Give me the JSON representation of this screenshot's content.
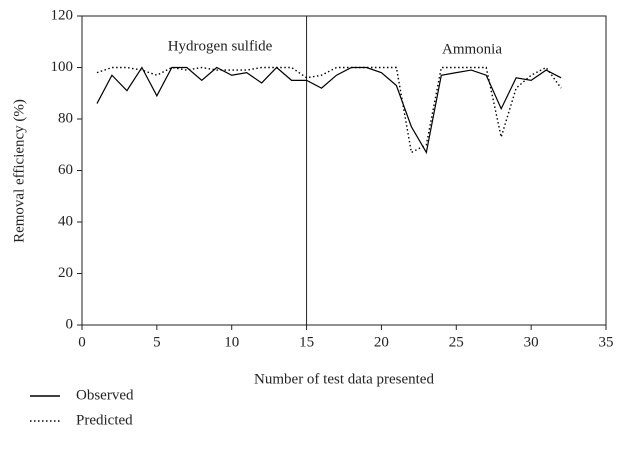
{
  "chart_data": {
    "type": "line",
    "x_label": "Number of test data presented",
    "y_label": "Removal efficiency (%)",
    "annotations": [
      "Hydrogen sulfide",
      "Ammonia"
    ],
    "divider_x": 15,
    "x": [
      1,
      2,
      3,
      4,
      5,
      6,
      7,
      8,
      9,
      10,
      11,
      12,
      13,
      14,
      15,
      16,
      17,
      18,
      19,
      20,
      21,
      22,
      23,
      24,
      25,
      26,
      27,
      28,
      29,
      30,
      31,
      32
    ],
    "series": [
      {
        "name": "Observed",
        "color": "#000000",
        "dash": "solid",
        "values": [
          86,
          97,
          91,
          100,
          89,
          100,
          100,
          95,
          100,
          97,
          98,
          94,
          100,
          95,
          95,
          92,
          97,
          100,
          100,
          98,
          93,
          77,
          67,
          97,
          98,
          99,
          97,
          84,
          96,
          95,
          99,
          96
        ]
      },
      {
        "name": "Predicted",
        "color": "#000000",
        "dash": "dotted",
        "values": [
          98,
          100,
          100,
          99,
          97,
          100,
          99,
          100,
          99,
          99,
          99,
          100,
          100,
          100,
          96,
          97,
          100,
          100,
          100,
          100,
          100,
          67,
          70,
          100,
          100,
          100,
          100,
          73,
          92,
          97,
          100,
          92
        ]
      }
    ],
    "xlim": [
      0,
      35
    ],
    "xticks": [
      0,
      5,
      10,
      15,
      20,
      25,
      30,
      35
    ],
    "ylim": [
      0,
      120
    ],
    "yticks": [
      0,
      20,
      40,
      60,
      80,
      100,
      120
    ],
    "grid": false
  }
}
